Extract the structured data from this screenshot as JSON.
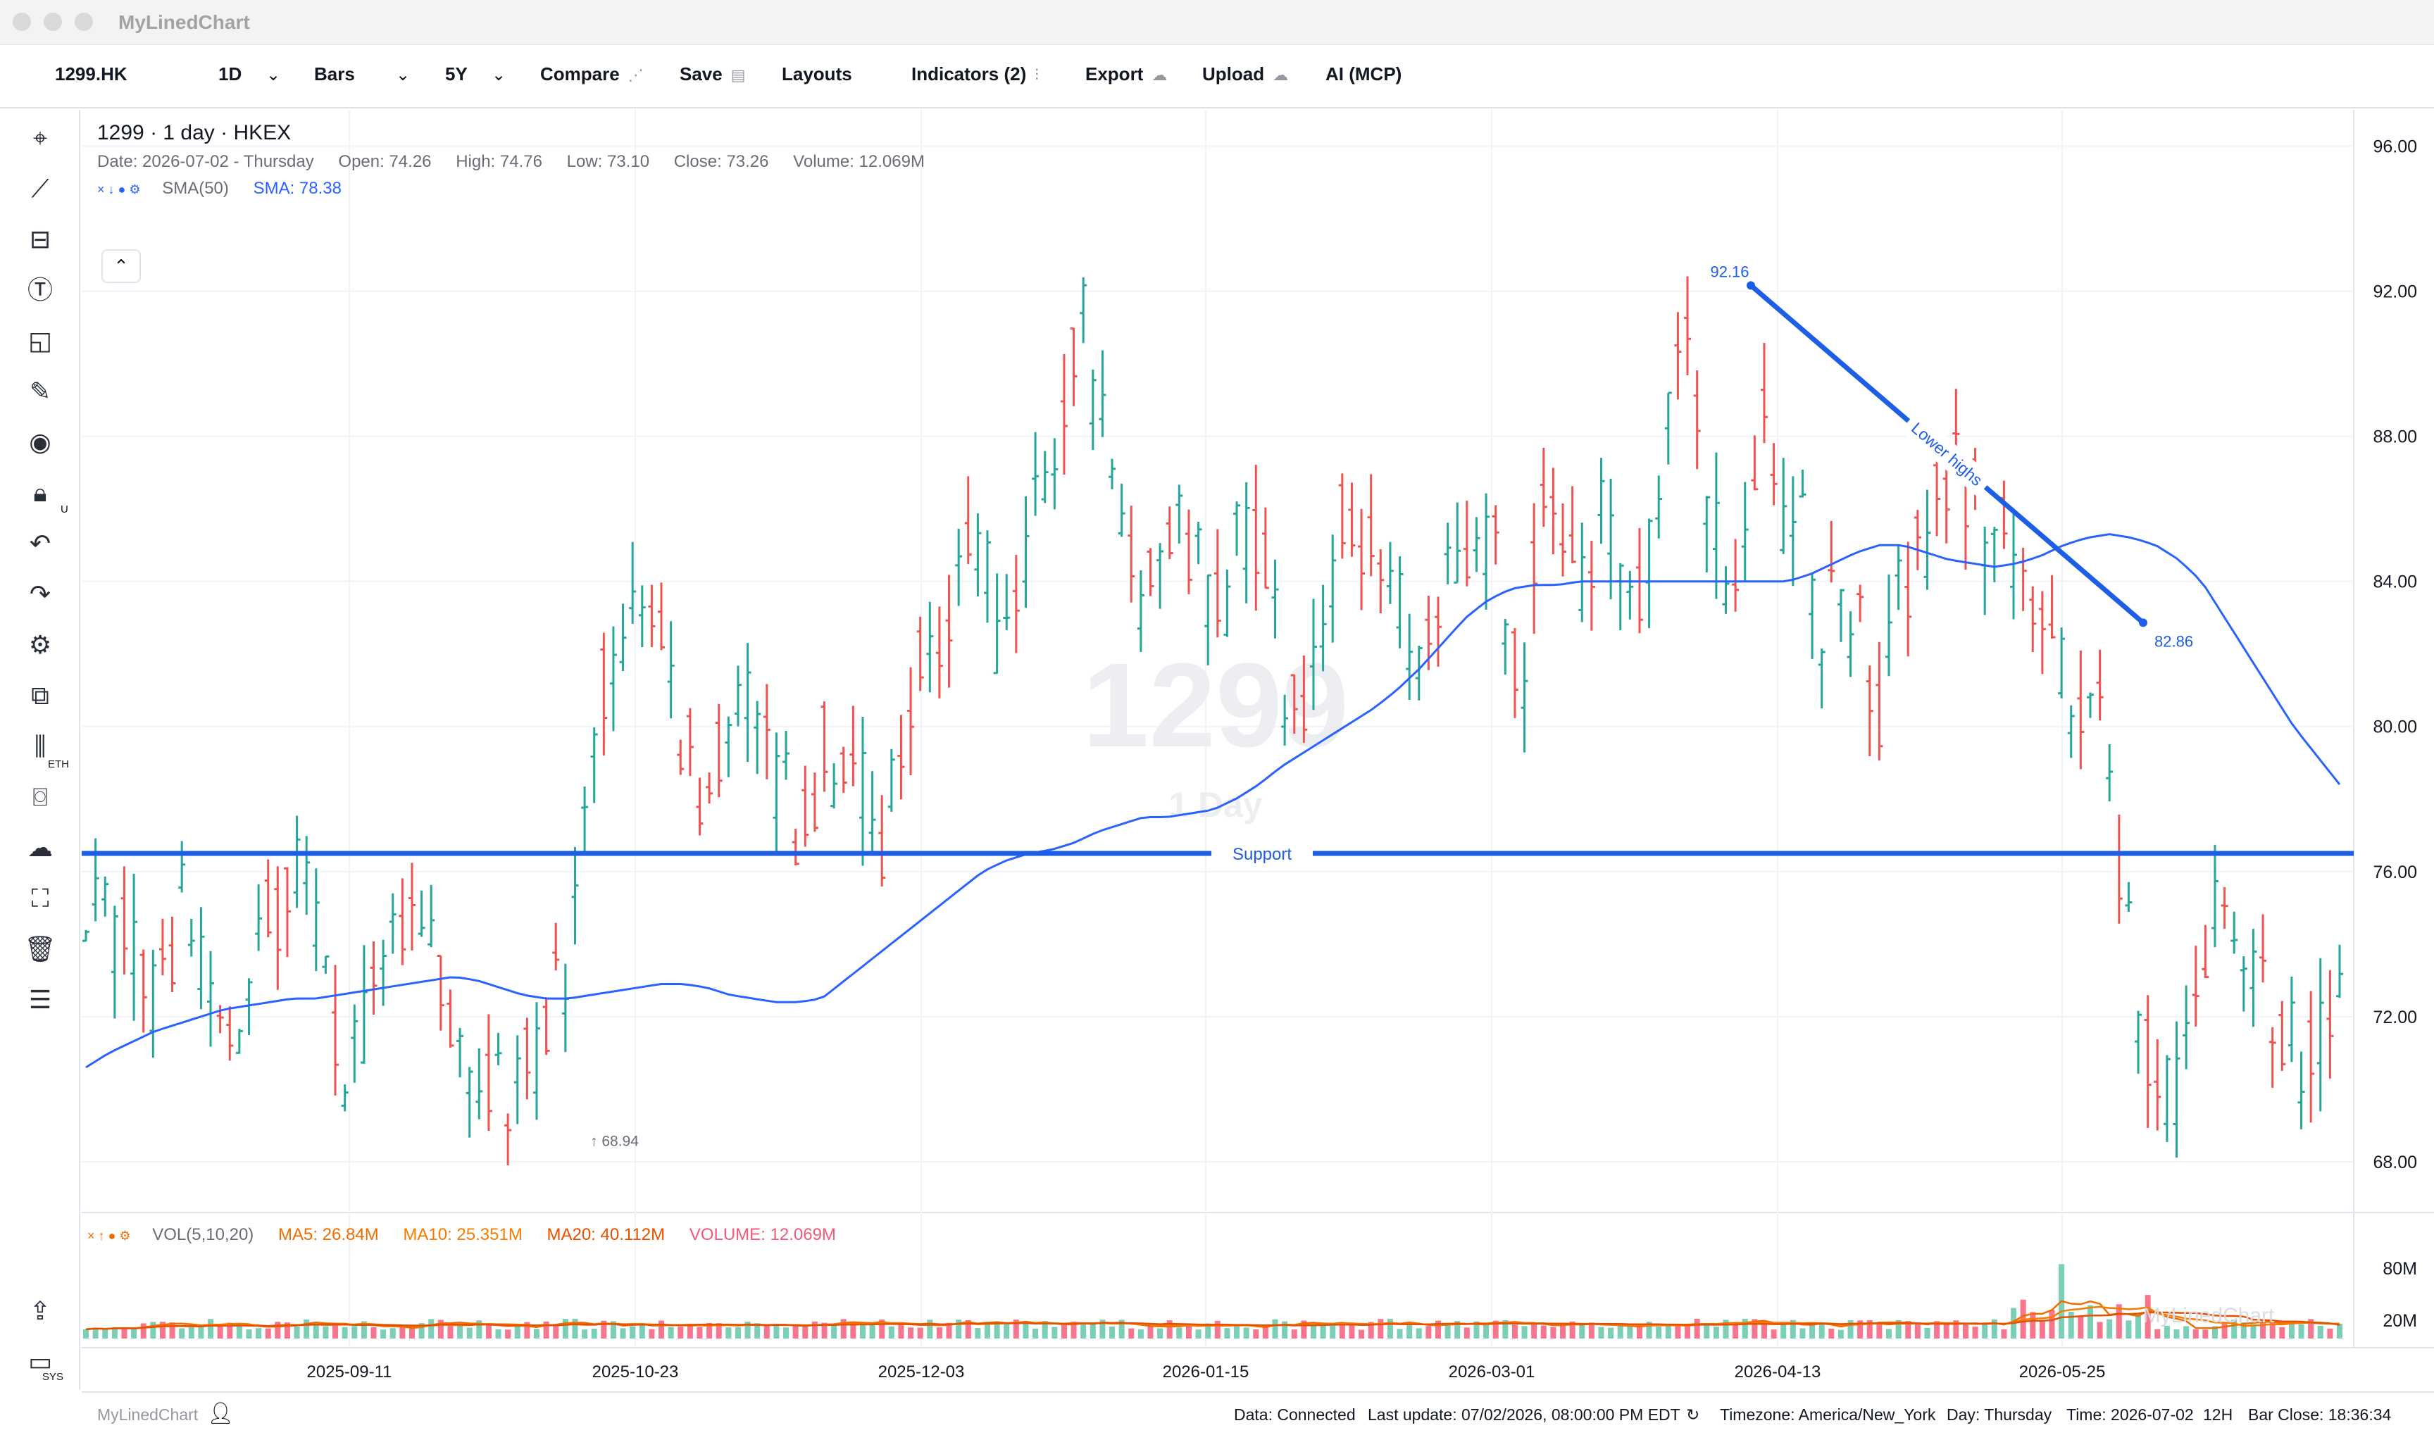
{
  "window": {
    "title": "MyLinedChart"
  },
  "toolbar": {
    "symbol": "1299.HK",
    "interval": "1D",
    "chart_type": "Bars",
    "range": "5Y",
    "compare": "Compare",
    "save": "Save",
    "layouts": "Layouts",
    "indicators": "Indicators (2)",
    "export": "Export",
    "upload": "Upload",
    "ai": "AI (MCP)"
  },
  "legend": {
    "title": "1299 · 1 day · HKEX",
    "date": "Date: 2026-07-02 - Thursday",
    "open": "Open: 74.26",
    "high": "High: 74.76",
    "low": "Low: 73.10",
    "close": "Close: 73.26",
    "volume": "Volume: 12.069M",
    "sma_name": "SMA(50)",
    "sma_value": "SMA: 78.38",
    "sma_icons": "× ↓ ● ⚙"
  },
  "watermark": {
    "symbol": "1299",
    "interval": "1 Day"
  },
  "vol_legend": {
    "icons": "× ↑ ● ⚙",
    "name": "VOL(5,10,20)",
    "ma5": "MA5: 26.84M",
    "ma10": "MA10: 25.351M",
    "ma20": "MA20: 40.112M",
    "volume": "VOLUME: 12.069M"
  },
  "left_tools": [
    "crosshair-icon",
    "trendline-icon",
    "fib-icon",
    "text-icon",
    "shapes-icon",
    "pencil-icon",
    "eye-icon",
    "lock-icon",
    "undo-icon",
    "redo-icon",
    "settings-icon",
    "compare-icon",
    "eth-icon",
    "camera-icon",
    "weather-icon",
    "fullscreen-icon",
    "trash-icon",
    "sliders-icon",
    "share-icon",
    "sys-icon"
  ],
  "left_tool_labels": {
    "lock": "U",
    "eth": "ETH",
    "sys": "SYS"
  },
  "status": {
    "brand": "MyLinedChart",
    "data": "Data: Connected",
    "last_update": "Last update: 07/02/2026, 08:00:00 PM EDT",
    "timezone": "Timezone: America/New_York",
    "day": "Day: Thursday",
    "time": "Time: 2026-07-02",
    "hours": "12H",
    "bar_close": "Bar Close: 18:36:34"
  },
  "colors": {
    "up": "#26a69a",
    "down": "#ef5350",
    "sma": "#2962ff",
    "drawing": "#1e5ee6",
    "ma5": "#ef6c00",
    "ma10": "#f57c00",
    "ma20": "#e65100",
    "volume_text": "#f05b78"
  },
  "chart_data": {
    "type": "bar",
    "subtype": "ohlc",
    "price_axis": {
      "ticks": [
        68,
        72,
        76,
        80,
        84,
        88,
        92,
        96
      ],
      "labels": [
        "68.00",
        "72.00",
        "76.00",
        "80.00",
        "84.00",
        "88.00",
        "92.00",
        "96.00"
      ],
      "range": [
        66.6,
        97.0
      ]
    },
    "volume_axis": {
      "labels": [
        "80M",
        "20M"
      ],
      "values": [
        80,
        20
      ]
    },
    "x_axis": {
      "labels": [
        "2025-09-11",
        "2025-10-23",
        "2025-12-03",
        "2026-01-15",
        "2026-03-01",
        "2026-04-13",
        "2026-05-25"
      ]
    },
    "grid": true,
    "annotations": {
      "support": {
        "label": "Support",
        "price": 76.5
      },
      "trendline": {
        "label": "Lower highs",
        "start_label": "92.16",
        "end_label": "82.86",
        "start_price": 92.16,
        "end_price": 82.86
      },
      "low_marker": {
        "label": "68.94",
        "price": 68.94
      }
    },
    "sma_path": [
      70.6,
      71.0,
      71.3,
      71.6,
      71.8,
      72.0,
      72.2,
      72.3,
      72.4,
      72.5,
      72.5,
      72.6,
      72.7,
      72.8,
      72.9,
      73.0,
      73.1,
      73.0,
      72.8,
      72.6,
      72.5,
      72.5,
      72.6,
      72.7,
      72.8,
      72.9,
      72.9,
      72.8,
      72.6,
      72.5,
      72.4,
      72.4,
      72.5,
      73.0,
      73.5,
      74.0,
      74.5,
      75.0,
      75.5,
      76.0,
      76.3,
      76.5,
      76.6,
      76.8,
      77.1,
      77.3,
      77.5,
      77.5,
      77.6,
      77.7,
      78.0,
      78.4,
      78.9,
      79.3,
      79.7,
      80.1,
      80.5,
      81.0,
      81.6,
      82.3,
      83.0,
      83.5,
      83.8,
      83.9,
      83.9,
      84.0,
      84.0,
      84.0,
      84.0,
      84.0,
      84.0,
      84.0,
      84.0,
      84.0,
      84.0,
      84.2,
      84.5,
      84.8,
      85.0,
      85.0,
      84.8,
      84.6,
      84.5,
      84.4,
      84.5,
      84.7,
      85.0,
      85.2,
      85.3,
      85.2,
      85.0,
      84.6,
      84.0,
      83.0,
      82.0,
      81.0,
      80.0,
      79.2,
      78.4
    ]
  }
}
